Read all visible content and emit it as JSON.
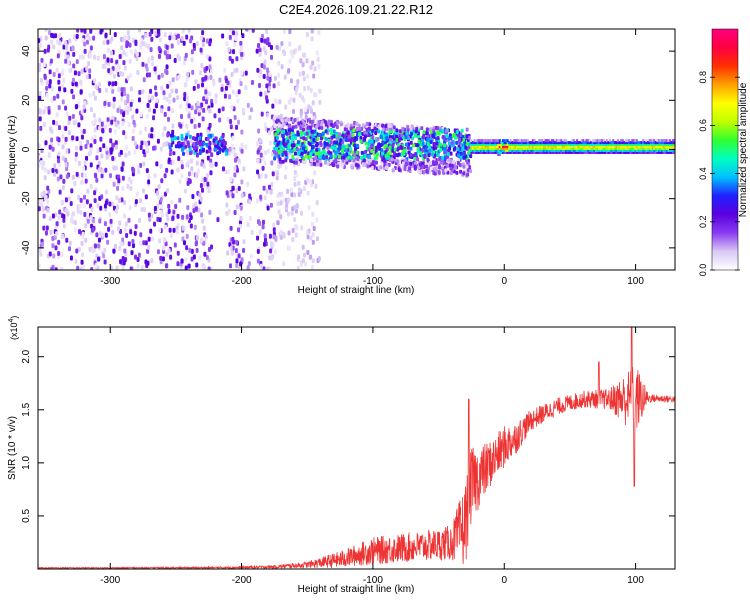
{
  "title": "C2E4.2026.109.21.22.R12",
  "chart_data": [
    {
      "type": "heatmap",
      "name": "spectrogram",
      "xlabel": "Height of straight line (km)",
      "ylabel": "Frequency (Hz)",
      "xlim": [
        -355,
        130
      ],
      "ylim": [
        -49,
        49
      ],
      "xticks": [
        -300,
        -200,
        -100,
        0,
        100
      ],
      "yticks": [
        -40,
        -20,
        0,
        20,
        40
      ],
      "colorbar": {
        "label": "Normalized spectral amplitude",
        "range": [
          0,
          1
        ],
        "ticks": [
          0.0,
          0.2,
          0.4,
          0.6,
          0.8
        ],
        "colors": [
          "#ffffff",
          "#d9c9f5",
          "#8a3cf0",
          "#5a00e0",
          "#2020ff",
          "#00c0ff",
          "#00ffc0",
          "#30ff30",
          "#c0ff00",
          "#ffff00",
          "#ffa000",
          "#ff3000",
          "#ff0040",
          "#ff0080"
        ]
      },
      "regions": [
        {
          "name": "broadband noise",
          "x": [
            -355,
            -175
          ],
          "freq": [
            -49,
            49
          ],
          "amplitude": 0.15
        },
        {
          "name": "noise fading",
          "x": [
            -175,
            -140
          ],
          "freq": [
            -49,
            49
          ],
          "amplitude": 0.08
        },
        {
          "name": "early signal",
          "x": [
            -255,
            -210
          ],
          "freq": [
            -2,
            6
          ],
          "amplitude": 0.3
        },
        {
          "name": "scintillating carrier",
          "x": [
            -175,
            -25
          ],
          "freq": [
            -12,
            10
          ],
          "amplitude": 0.35
        },
        {
          "name": "clean carrier",
          "x": [
            -25,
            130
          ],
          "freq": [
            -1,
            3
          ],
          "amplitude": 0.75
        }
      ]
    },
    {
      "type": "line",
      "name": "snr",
      "xlabel": "Height of straight line (km)",
      "ylabel": "SNR (10 * v/v)",
      "scale_label": "(x10",
      "scale_exp": "4",
      "color": "#ee3333",
      "xlim": [
        -355,
        130
      ],
      "ylim": [
        0.0,
        2.28
      ],
      "xticks": [
        -300,
        -200,
        -100,
        0,
        100
      ],
      "yticks": [
        0.5,
        1.0,
        1.5,
        2.0
      ],
      "envelope": {
        "x": [
          -355,
          -300,
          -250,
          -200,
          -175,
          -150,
          -125,
          -100,
          -75,
          -50,
          -40,
          -30,
          -25,
          -20,
          -10,
          0,
          10,
          20,
          40,
          60,
          80,
          100,
          110,
          130
        ],
        "mean": [
          0.01,
          0.01,
          0.01,
          0.015,
          0.02,
          0.04,
          0.09,
          0.17,
          0.2,
          0.23,
          0.25,
          0.4,
          0.8,
          0.85,
          1.0,
          1.15,
          1.25,
          1.4,
          1.53,
          1.6,
          1.6,
          1.6,
          1.61,
          1.6
        ],
        "spread": [
          0.005,
          0.005,
          0.008,
          0.01,
          0.015,
          0.03,
          0.08,
          0.13,
          0.14,
          0.15,
          0.17,
          0.4,
          0.35,
          0.3,
          0.22,
          0.2,
          0.15,
          0.1,
          0.08,
          0.08,
          0.1,
          0.35,
          0.04,
          0.03
        ]
      },
      "peaks": [
        {
          "x": 97,
          "y": 2.28
        },
        {
          "x": 99,
          "y": 0.78
        },
        {
          "x": -27,
          "y": 1.6
        },
        {
          "x": 72,
          "y": 1.95
        }
      ]
    }
  ]
}
